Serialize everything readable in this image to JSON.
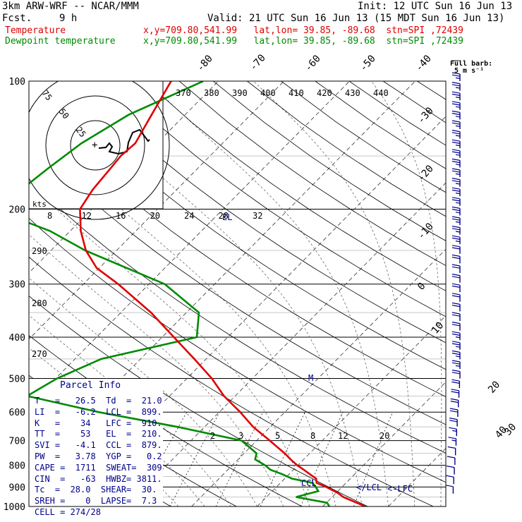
{
  "header": {
    "model": "3km ARW-WRF -- NCAR/MMM",
    "init": "Init: 12 UTC Sun 16 Jun 13",
    "fcst_label": "Fcst.",
    "fcst_value": "9 h",
    "valid": "Valid: 21 UTC Sun 16 Jun 13 (15 MDT Sun 16 Jun 13)",
    "temp_label": "Temperature",
    "temp_loc": "x,y=709.80,541.99   lat,lon= 39.85, -89.68  stn=SPI ,72439",
    "dew_label": "Dewpoint temperature",
    "dew_loc": "x,y=709.80,541.99   lat,lon= 39.85, -89.68  stn=SPI ,72439"
  },
  "colors": {
    "temperature": "#e00000",
    "dewpoint": "#008a00",
    "parcel_text": "#00008b",
    "barbs": "#00008b"
  },
  "barb_title": "Full barb:",
  "barb_title2": "5 m s⁻¹",
  "hodograph": {
    "rings": [
      "25",
      "50",
      "75"
    ],
    "axis_label": "kts",
    "axis_ticks": [
      "8",
      "12",
      "16",
      "20",
      "24",
      "28",
      "32"
    ]
  },
  "labels": {
    "el": "EL",
    "ccl": "CCL",
    "lcl": "LCL",
    "lfc": "LFC",
    "m": "M"
  },
  "parcel_info": {
    "title": "Parcel Info",
    "rows": [
      "T   =   26.5  Td  =  21.0",
      "LI  =   -6.2  LCL =  899.",
      "K   =    34   LFC =  910.",
      "TT  =    53   EL  =  210.",
      "SVI =   -4.1  CCL =  879.",
      "PW  =   3.78  YGP =   0.2",
      "CAPE =  1711  SWEAT=  309",
      "CIN  =   -63  HWBZ= 3811.",
      "Tc  =  28.0  SHEAR=  30.",
      "SREH =    0  LAPSE=  7.3",
      "CELL = 274/28"
    ]
  },
  "chart_data": {
    "type": "skew-t log-p",
    "pressure_levels": [
      100,
      200,
      300,
      400,
      500,
      600,
      700,
      800,
      900,
      1000
    ],
    "isotherm_labels": [
      "-80",
      "-70",
      "-60",
      "-50",
      "-40",
      "-30",
      "-20",
      "-10",
      "0",
      "10",
      "20",
      "30",
      "40"
    ],
    "theta_labels_top": [
      "370",
      "380",
      "390",
      "400",
      "410",
      "420",
      "430",
      "440"
    ],
    "theta_labels_left": [
      "290",
      "280",
      "270"
    ],
    "mixing_ratio_labels": [
      "2",
      "3",
      "5",
      "8",
      "12",
      "20"
    ],
    "temperature": {
      "name": "Temperature",
      "p": [
        1000,
        980,
        950,
        930,
        900,
        880,
        860,
        840,
        820,
        800,
        775,
        750,
        720,
        700,
        650,
        600,
        550,
        500,
        450,
        400,
        350,
        300,
        275,
        250,
        225,
        200,
        180,
        160,
        150,
        140,
        120,
        100
      ],
      "t": [
        26.5,
        24.6,
        21.7,
        20.3,
        17.6,
        15.5,
        14.8,
        13.2,
        11.6,
        9.9,
        8.0,
        6.2,
        3.7,
        2.0,
        -2.6,
        -6.8,
        -11.7,
        -16.2,
        -21.8,
        -28.2,
        -35.4,
        -44.7,
        -50.4,
        -54.7,
        -58.4,
        -61.8,
        -62.8,
        -63.3,
        -63.6,
        -63.3,
        -65.1,
        -67.2
      ]
    },
    "dewpoint": {
      "name": "Dewpoint temperature",
      "p": [
        1000,
        980,
        950,
        920,
        900,
        880,
        860,
        840,
        820,
        800,
        775,
        750,
        700,
        650,
        600,
        550,
        500,
        450,
        400,
        350,
        300,
        250,
        225,
        200,
        180,
        160,
        140,
        120,
        100
      ],
      "td": [
        21.0,
        20.1,
        14.5,
        17.0,
        16.0,
        14.9,
        11.1,
        9.0,
        6.5,
        5.0,
        2.6,
        1.9,
        -2.3,
        -14.1,
        -28.4,
        -41.7,
        -39.8,
        -36.0,
        -24.7,
        -28.1,
        -37.6,
        -54.8,
        -63.1,
        -75.1,
        -73.7,
        -72.8,
        -71.5,
        -68.6,
        -62.3
      ]
    },
    "wind": {
      "p": [
        1000,
        975,
        950,
        925,
        900,
        875,
        850,
        800,
        775,
        750,
        725,
        700,
        650,
        600,
        550,
        500,
        450,
        400,
        350,
        300,
        250,
        200,
        150,
        100
      ],
      "speed_ms": [
        6,
        7,
        7,
        6,
        5,
        5,
        5,
        6,
        7,
        8,
        8,
        9,
        10,
        11,
        12,
        13,
        13,
        12,
        11,
        12,
        13,
        14,
        13,
        12
      ]
    },
    "hodograph_trace": [
      [
        0,
        0
      ],
      [
        3,
        -5
      ],
      [
        9,
        -5
      ],
      [
        10,
        -14
      ],
      [
        15,
        -13
      ],
      [
        19,
        -14
      ],
      [
        22,
        -23
      ],
      [
        20,
        -20
      ],
      [
        24,
        -30
      ],
      [
        27,
        -39
      ],
      [
        33,
        -43
      ]
    ],
    "xlabel": "",
    "ylabel": ""
  }
}
